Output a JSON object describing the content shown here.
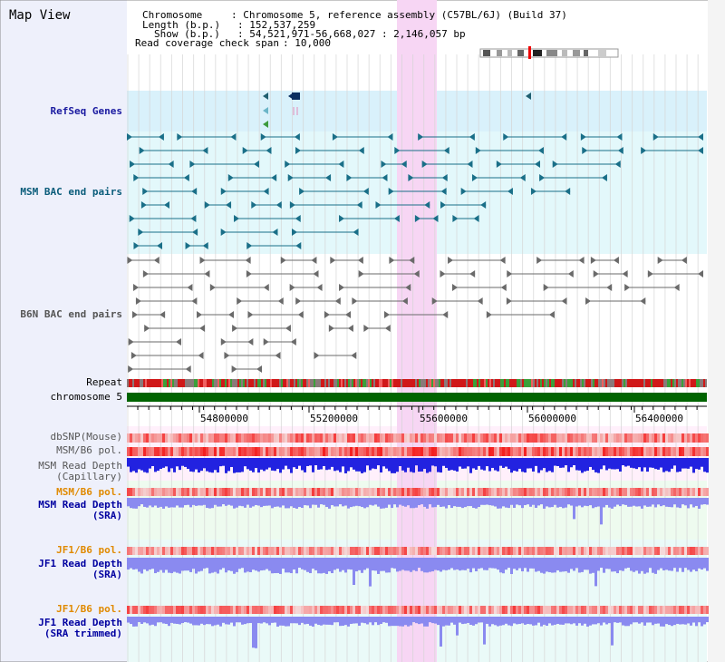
{
  "view_title": "Map View",
  "info": {
    "chromosome_label": "Chromosome",
    "chromosome_value": ": Chromosome 5, reference assembly (C57BL/6J) (Build 37)",
    "length_label": "Length (b.p.)",
    "length_value": ": 152,537,259",
    "show_label": "Show (b.p.)",
    "show_value": ": 54,521,971-56,668,027 : 2,146,057 bp",
    "coverage_label": "Read coverage check span",
    "coverage_value": ": 10,000"
  },
  "tracks": {
    "refseq": "RefSeq Genes",
    "msm_bac": "MSM BAC end pairs",
    "b6n_bac": "B6N BAC end pairs",
    "repeat": "Repeat",
    "chromosome": "chromosome 5",
    "dbsnp": "dbSNP(Mouse)",
    "msm_b6_pol": "MSM/B6 pol.",
    "msm_read_depth_cap_1": "MSM Read Depth",
    "msm_read_depth_cap_2": "(Capillary)",
    "msm_b6_pol_2": "MSM/B6 pol.",
    "msm_read_depth_sra_1": "MSM Read Depth",
    "msm_read_depth_sra_2": "(SRA)",
    "jf1_b6_pol": "JF1/B6 pol.",
    "jf1_read_depth_sra_1": "JF1 Read Depth",
    "jf1_read_depth_sra_2": "(SRA)",
    "jf1_b6_pol_2": "JF1/B6 pol.",
    "jf1_read_depth_trim_1": "JF1 Read Depth",
    "jf1_read_depth_trim_2": "(SRA trimmed)"
  },
  "axis_ticks": [
    "54800000",
    "55200000",
    "55600000",
    "56000000",
    "56400000"
  ],
  "colors": {
    "highlight": "#f7d6f4",
    "refseq_bg": "#d9f1fb",
    "msm_bg": "#e3f8fb",
    "chrom_bar": "#006400",
    "depth_dark": "#2222e0",
    "depth_light": "#8a8af0",
    "teal_feature": "#1a6f88",
    "gray_feature": "#6a6a6a"
  }
}
